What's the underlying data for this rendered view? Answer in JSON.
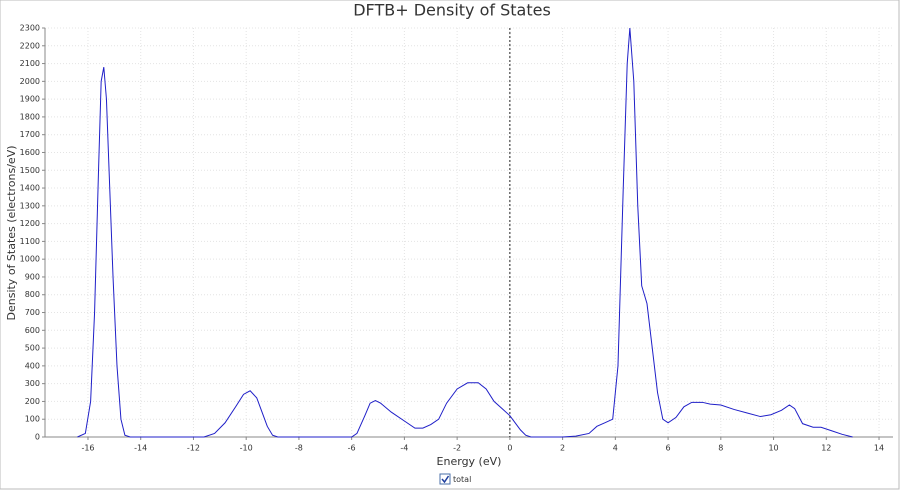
{
  "chart_data": {
    "type": "line",
    "title": "DFTB+ Density of States",
    "x_label": "Energy (eV)",
    "y_label": "Density of States (electrons/eV)",
    "x": [
      -16.4,
      -16.1,
      -15.9,
      -15.75,
      -15.6,
      -15.5,
      -15.4,
      -15.3,
      -15.2,
      -15.05,
      -14.9,
      -14.75,
      -14.6,
      -14.4,
      -11.6,
      -11.2,
      -10.8,
      -10.4,
      -10.1,
      -9.85,
      -9.6,
      -9.4,
      -9.2,
      -9.0,
      -8.8,
      -6.0,
      -5.8,
      -5.5,
      -5.3,
      -5.1,
      -4.9,
      -4.5,
      -4.0,
      -3.6,
      -3.3,
      -3.0,
      -2.7,
      -2.4,
      -2.0,
      -1.6,
      -1.2,
      -0.9,
      -0.6,
      -0.3,
      0,
      0.2,
      0.4,
      0.6,
      0.8,
      2.0,
      2.5,
      3.0,
      3.3,
      3.6,
      3.9,
      4.1,
      4.3,
      4.45,
      4.55,
      4.7,
      4.85,
      5.0,
      5.2,
      5.4,
      5.6,
      5.8,
      6.0,
      6.3,
      6.6,
      6.9,
      7.3,
      7.6,
      8.0,
      8.5,
      9.0,
      9.5,
      9.9,
      10.3,
      10.6,
      10.8,
      11.1,
      11.5,
      11.8,
      12.2,
      12.6,
      13.0
    ],
    "series": [
      {
        "name": "total",
        "color": "#1f1fc8",
        "values": [
          0,
          20,
          200,
          700,
          1500,
          2000,
          2080,
          1900,
          1500,
          900,
          400,
          100,
          10,
          0,
          0,
          20,
          80,
          170,
          240,
          260,
          220,
          140,
          60,
          10,
          0,
          0,
          20,
          120,
          190,
          205,
          190,
          140,
          90,
          50,
          50,
          70,
          100,
          190,
          270,
          305,
          305,
          270,
          200,
          160,
          120,
          80,
          40,
          10,
          0,
          0,
          5,
          20,
          60,
          80,
          100,
          400,
          1400,
          2100,
          2300,
          2000,
          1300,
          850,
          750,
          500,
          250,
          100,
          80,
          110,
          170,
          195,
          195,
          185,
          180,
          155,
          135,
          115,
          125,
          150,
          180,
          160,
          75,
          55,
          55,
          35,
          15,
          0
        ]
      }
    ],
    "xlim": [
      -17.63,
      14.53
    ],
    "ylim": [
      0,
      2300
    ],
    "xticks": [
      -16,
      -14,
      -12,
      -10,
      -8,
      -6,
      -4,
      -2,
      0,
      2,
      4,
      6,
      8,
      10,
      12,
      14
    ],
    "yticks": [
      0,
      100,
      200,
      300,
      400,
      500,
      600,
      700,
      800,
      900,
      1000,
      1100,
      1200,
      1300,
      1400,
      1500,
      1600,
      1700,
      1800,
      1900,
      2000,
      2100,
      2200,
      2300
    ],
    "vlines": [
      0
    ],
    "grid": true
  }
}
